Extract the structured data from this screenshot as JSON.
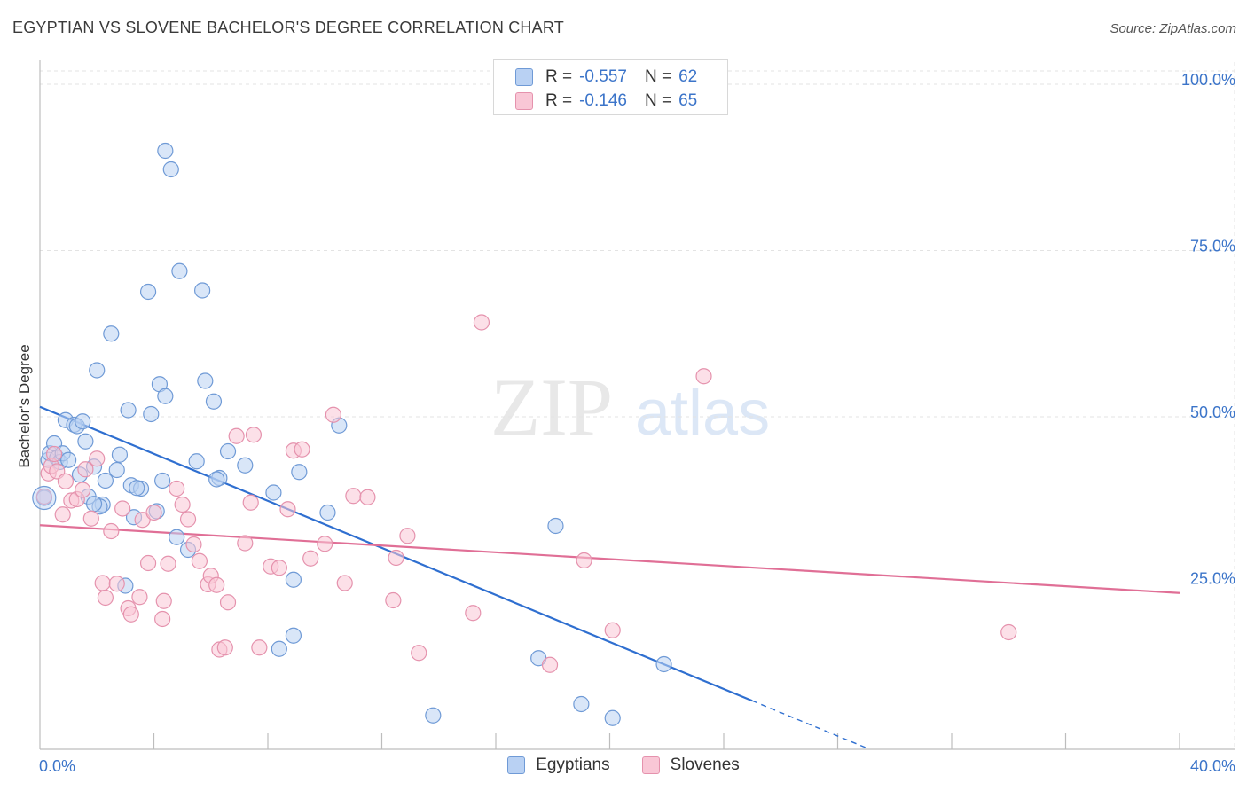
{
  "title": "EGYPTIAN VS SLOVENE BACHELOR'S DEGREE CORRELATION CHART",
  "source": "Source: ZipAtlas.com",
  "watermark": {
    "zip": "ZIP",
    "atlas": "atlas"
  },
  "legend": {
    "r_label": "R =",
    "n_label": "N =",
    "rows": [
      {
        "r": "-0.557",
        "n": "62"
      },
      {
        "r": "-0.146",
        "n": "65"
      }
    ]
  },
  "colors": {
    "blue_fill": "#b9d1f3",
    "blue_stroke": "#6f9ad6",
    "blue_line": "#2f6fd0",
    "pink_fill": "#f9c7d6",
    "pink_stroke": "#e592ad",
    "pink_line": "#e06f96",
    "tick_text": "#3b74c9",
    "grid": "#e3e3e3"
  },
  "chart_data": {
    "type": "scatter",
    "title": "EGYPTIAN VS SLOVENE BACHELOR'S DEGREE CORRELATION CHART",
    "xlabel": "",
    "ylabel": "Bachelor's Degree",
    "xlim": [
      0,
      40
    ],
    "ylim": [
      0,
      102
    ],
    "x_tick_labels": [
      "0.0%",
      "40.0%"
    ],
    "y_ticks": [
      25,
      50,
      75,
      100
    ],
    "y_tick_labels": [
      "25.0%",
      "50.0%",
      "75.0%",
      "100.0%"
    ],
    "grid": true,
    "legend_position": "top-center",
    "series": [
      {
        "name": "Egyptians",
        "r": -0.557,
        "n": 62,
        "trend": {
          "x0": 0,
          "y0": 51.5,
          "x1": 25.0,
          "y1": 7.3,
          "dash_to_x": 29.0
        },
        "points": [
          [
            0.15,
            37.8
          ],
          [
            0.3,
            43.5
          ],
          [
            0.35,
            44.5
          ],
          [
            0.5,
            46.0
          ],
          [
            0.6,
            43.8
          ],
          [
            0.7,
            43.2
          ],
          [
            0.8,
            44.5
          ],
          [
            0.9,
            49.5
          ],
          [
            1.0,
            43.5
          ],
          [
            1.2,
            48.8
          ],
          [
            1.3,
            48.6
          ],
          [
            1.5,
            49.3
          ],
          [
            1.6,
            46.3
          ],
          [
            1.7,
            38.0
          ],
          [
            1.9,
            42.5
          ],
          [
            1.4,
            41.3
          ],
          [
            2.0,
            57.0
          ],
          [
            2.2,
            36.8
          ],
          [
            2.3,
            40.4
          ],
          [
            2.5,
            62.5
          ],
          [
            2.8,
            44.3
          ],
          [
            3.1,
            51.0
          ],
          [
            3.0,
            24.6
          ],
          [
            3.2,
            39.7
          ],
          [
            3.3,
            34.9
          ],
          [
            3.55,
            39.2
          ],
          [
            3.8,
            68.8
          ],
          [
            3.9,
            50.4
          ],
          [
            4.1,
            35.8
          ],
          [
            4.2,
            54.9
          ],
          [
            4.3,
            40.4
          ],
          [
            4.4,
            53.1
          ],
          [
            4.4,
            90.0
          ],
          [
            4.6,
            87.2
          ],
          [
            4.8,
            31.9
          ],
          [
            4.9,
            71.9
          ],
          [
            5.2,
            30.0
          ],
          [
            5.5,
            43.3
          ],
          [
            5.7,
            69.0
          ],
          [
            5.8,
            55.4
          ],
          [
            6.1,
            52.3
          ],
          [
            6.3,
            40.8
          ],
          [
            6.6,
            44.8
          ],
          [
            7.2,
            42.7
          ],
          [
            8.2,
            38.6
          ],
          [
            8.4,
            15.1
          ],
          [
            8.9,
            17.1
          ],
          [
            8.9,
            25.5
          ],
          [
            9.1,
            41.7
          ],
          [
            10.1,
            35.6
          ],
          [
            10.5,
            48.7
          ],
          [
            13.8,
            5.1
          ],
          [
            17.5,
            13.7
          ],
          [
            18.1,
            33.6
          ],
          [
            19.0,
            6.8
          ],
          [
            20.1,
            4.7
          ],
          [
            21.9,
            12.8
          ],
          [
            2.1,
            36.5
          ],
          [
            2.7,
            42.0
          ],
          [
            6.2,
            40.6
          ],
          [
            1.9,
            36.9
          ],
          [
            3.4,
            39.3
          ]
        ]
      },
      {
        "name": "Slovenes",
        "r": -0.146,
        "n": 65,
        "trend": {
          "x0": 0,
          "y0": 33.7,
          "x1": 40,
          "y1": 23.5
        },
        "points": [
          [
            0.15,
            38.0
          ],
          [
            0.3,
            41.5
          ],
          [
            0.4,
            42.6
          ],
          [
            0.5,
            44.4
          ],
          [
            0.6,
            41.8
          ],
          [
            0.8,
            35.3
          ],
          [
            0.9,
            40.3
          ],
          [
            1.1,
            37.4
          ],
          [
            1.3,
            37.6
          ],
          [
            1.5,
            39.0
          ],
          [
            1.6,
            42.1
          ],
          [
            1.8,
            34.7
          ],
          [
            2.0,
            43.7
          ],
          [
            2.2,
            25.0
          ],
          [
            2.3,
            22.8
          ],
          [
            2.5,
            32.8
          ],
          [
            2.7,
            24.9
          ],
          [
            2.9,
            36.2
          ],
          [
            3.1,
            21.2
          ],
          [
            3.2,
            20.3
          ],
          [
            3.5,
            22.9
          ],
          [
            3.6,
            34.5
          ],
          [
            3.8,
            28.0
          ],
          [
            4.0,
            35.6
          ],
          [
            4.3,
            19.6
          ],
          [
            4.35,
            22.3
          ],
          [
            4.5,
            27.9
          ],
          [
            4.8,
            39.2
          ],
          [
            5.0,
            36.8
          ],
          [
            5.2,
            34.6
          ],
          [
            5.4,
            30.8
          ],
          [
            5.6,
            28.3
          ],
          [
            5.9,
            24.8
          ],
          [
            6.0,
            26.1
          ],
          [
            6.2,
            24.7
          ],
          [
            6.3,
            15.0
          ],
          [
            6.5,
            15.3
          ],
          [
            6.6,
            22.1
          ],
          [
            6.9,
            47.1
          ],
          [
            7.2,
            31.0
          ],
          [
            7.4,
            37.1
          ],
          [
            7.5,
            47.3
          ],
          [
            7.7,
            15.3
          ],
          [
            8.1,
            27.5
          ],
          [
            8.4,
            27.3
          ],
          [
            8.7,
            36.1
          ],
          [
            8.9,
            44.9
          ],
          [
            9.2,
            45.1
          ],
          [
            9.5,
            28.7
          ],
          [
            10.0,
            30.9
          ],
          [
            10.3,
            50.3
          ],
          [
            10.7,
            25.0
          ],
          [
            11.0,
            38.1
          ],
          [
            11.5,
            37.9
          ],
          [
            12.4,
            22.4
          ],
          [
            12.5,
            28.8
          ],
          [
            12.9,
            32.1
          ],
          [
            13.3,
            14.5
          ],
          [
            15.2,
            20.5
          ],
          [
            15.5,
            64.2
          ],
          [
            17.9,
            12.7
          ],
          [
            19.1,
            28.4
          ],
          [
            20.1,
            17.9
          ],
          [
            23.3,
            56.1
          ],
          [
            34.0,
            17.6
          ]
        ]
      }
    ]
  }
}
